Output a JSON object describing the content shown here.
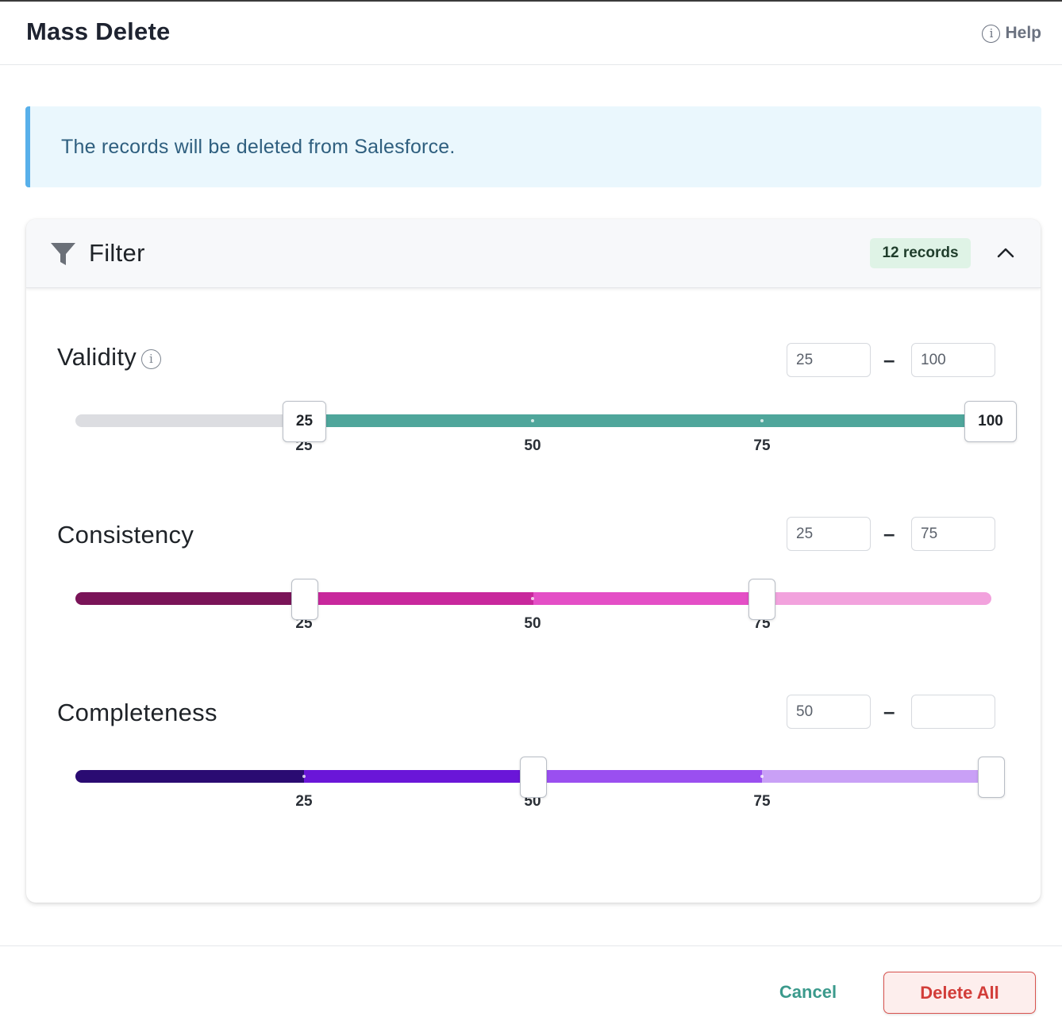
{
  "dialog": {
    "title": "Mass Delete",
    "help_label": "Help"
  },
  "banner": {
    "message": "The records will be deleted from Salesforce."
  },
  "filter": {
    "label": "Filter",
    "records_badge": "12 records",
    "icons": {
      "filter": "funnel-icon",
      "collapse": "chevron-up-icon",
      "info": "info-icon"
    },
    "sliders": [
      {
        "label": "Validity",
        "has_info": true,
        "min_input": "25",
        "max_input": "100",
        "range_low": 25,
        "range_high": 100,
        "handle_low_label": "25",
        "handle_high_label": "100",
        "ticks": [
          "25",
          "50",
          "75"
        ]
      },
      {
        "label": "Consistency",
        "has_info": false,
        "min_input": "25",
        "max_input": "75",
        "range_low": 25,
        "range_high": 75,
        "ticks": [
          "25",
          "50",
          "75"
        ]
      },
      {
        "label": "Completeness",
        "has_info": false,
        "min_input": "50",
        "max_input": "",
        "range_low": 50,
        "range_high": 100,
        "ticks": [
          "25",
          "50",
          "75"
        ]
      }
    ]
  },
  "footer": {
    "cancel_label": "Cancel",
    "delete_label": "Delete All"
  },
  "colors": {
    "validity_selected": "#4fa69b",
    "validity_unselected": "#dcdde1",
    "consistency": [
      "#7a1458",
      "#c8289c",
      "#e44fc6",
      "#f2a2dd"
    ],
    "completeness": [
      "#2a0b72",
      "#6a16d8",
      "#9a4ff0",
      "#c9a0f6"
    ],
    "accent_cancel": "#3b9a8c",
    "danger": "#d23d39"
  }
}
